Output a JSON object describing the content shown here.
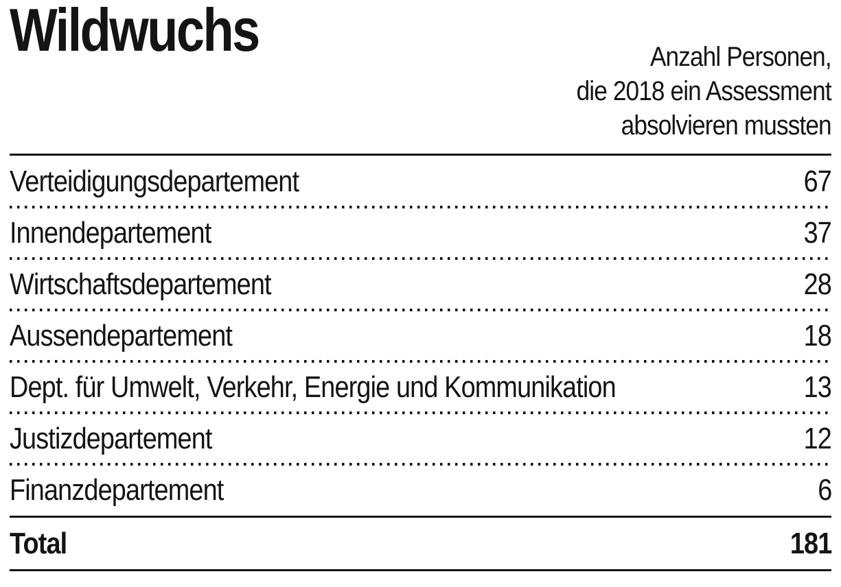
{
  "title": "Wildwuchs",
  "header": {
    "note_line1": "Anzahl Personen,",
    "note_line2": "die 2018 ein Assessment",
    "note_line3": "absolvieren mussten"
  },
  "table": {
    "rows": [
      {
        "label": "Verteidigungsdepartement",
        "value": "67"
      },
      {
        "label": "Innendepartement",
        "value": "37"
      },
      {
        "label": "Wirtschaftsdepartement",
        "value": "28"
      },
      {
        "label": "Aussendepartement",
        "value": "18"
      },
      {
        "label": "Dept. für Umwelt, Verkehr, Energie und Kommunikation",
        "value": "13"
      },
      {
        "label": "Justizdepartement",
        "value": "12"
      },
      {
        "label": "Finanzdepartement",
        "value": "6"
      }
    ],
    "total": {
      "label": "Total",
      "value": "181"
    }
  },
  "chart_data": {
    "type": "table",
    "title": "Wildwuchs",
    "subtitle": "Anzahl Personen, die 2018 ein Assessment absolvieren mussten",
    "categories": [
      "Verteidigungsdepartement",
      "Innendepartement",
      "Wirtschaftsdepartement",
      "Aussendepartement",
      "Dept. für Umwelt, Verkehr, Energie und Kommunikation",
      "Justizdepartement",
      "Finanzdepartement"
    ],
    "values": [
      67,
      37,
      28,
      18,
      13,
      12,
      6
    ],
    "total": 181,
    "colors": {
      "text": "#141414",
      "background": "#ffffff"
    }
  }
}
